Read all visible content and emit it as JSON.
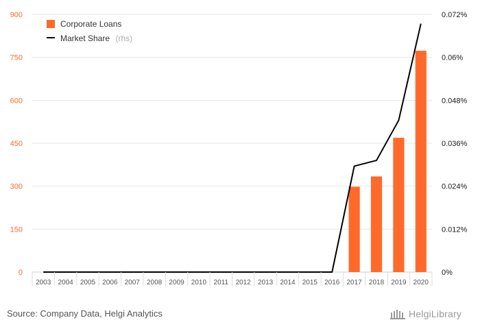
{
  "chart_data": {
    "type": "bar+line",
    "categories": [
      "2003",
      "2004",
      "2005",
      "2006",
      "2007",
      "2008",
      "2009",
      "2010",
      "2011",
      "2012",
      "2013",
      "2014",
      "2015",
      "2016",
      "2017",
      "2018",
      "2019",
      "2020"
    ],
    "series": [
      {
        "name": "Corporate Loans",
        "type": "bar",
        "axis": "left",
        "color": "#ff6a2b",
        "values": [
          0,
          0,
          0,
          0,
          0,
          0,
          0,
          0,
          0,
          0,
          0,
          0,
          0,
          0,
          298,
          334,
          469,
          773
        ]
      },
      {
        "name": "Market Share",
        "type": "line",
        "axis": "right",
        "color": "#000000",
        "values": [
          0,
          0,
          0,
          0,
          0,
          0,
          0,
          0,
          0,
          0,
          0,
          0,
          0,
          0,
          0.0296,
          0.0312,
          0.0424,
          0.0694
        ]
      }
    ],
    "y_left": {
      "ylim": [
        0,
        900
      ],
      "ticks": [
        0,
        150,
        300,
        450,
        600,
        750,
        900
      ],
      "tick_labels": [
        "0",
        "150",
        "300",
        "450",
        "600",
        "750",
        "900"
      ]
    },
    "y_right": {
      "ylim": [
        0,
        0.072
      ],
      "ticks": [
        0,
        0.012,
        0.024,
        0.036,
        0.048,
        0.06,
        0.072
      ],
      "tick_labels": [
        "0%",
        "0.012%",
        "0.024%",
        "0.036%",
        "0.048%",
        "0.06%",
        "0.072%"
      ]
    },
    "legend": {
      "placement": "top-left",
      "items": [
        {
          "label": "Corporate Loans",
          "suffix": ""
        },
        {
          "label": "Market Share",
          "suffix": "(rhs)"
        }
      ]
    },
    "grid": true
  },
  "footer": {
    "source": "Source: Company Data, Helgi Analytics",
    "logo_text": "HelgiLibrary"
  },
  "colors": {
    "bar": "#ff6a2b",
    "line": "#000000",
    "left_axis_text": "#ff6a2b",
    "right_axis_text": "#1a1a1a",
    "grid": "#e6e6e6"
  }
}
